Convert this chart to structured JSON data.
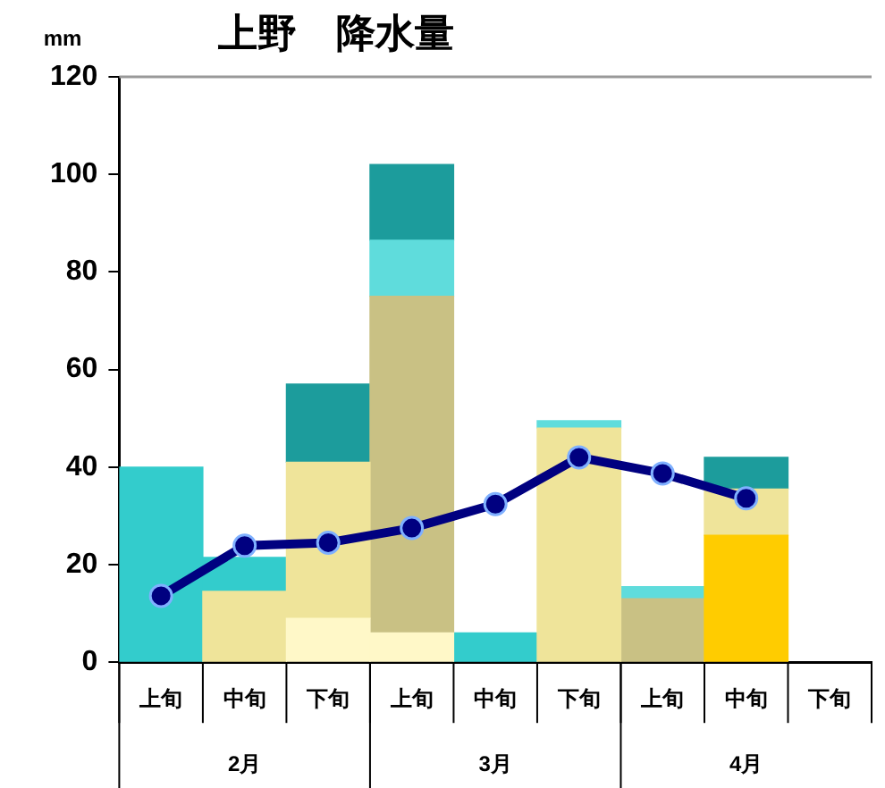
{
  "chart_data": {
    "type": "bar",
    "title": "上野　降水量",
    "ylabel": "mm",
    "stacked": true,
    "categories": [
      "上旬",
      "中旬",
      "下旬",
      "上旬",
      "中旬",
      "下旬",
      "上旬",
      "中旬",
      "下旬"
    ],
    "annotations": [
      "2月",
      "3月",
      "4月"
    ],
    "ylim": [
      0,
      120
    ],
    "yticks": [
      0,
      20,
      40,
      60,
      80,
      100,
      120
    ],
    "series": [
      {
        "color": "#ffcc00",
        "values": [
          null,
          null,
          null,
          null,
          null,
          null,
          null,
          26,
          null
        ]
      },
      {
        "color": "#fff8c8",
        "values": [
          null,
          null,
          9,
          6,
          null,
          null,
          null,
          null,
          null
        ]
      },
      {
        "color": "#efe49a",
        "values": [
          null,
          14.5,
          32,
          null,
          null,
          48,
          null,
          9.5,
          null
        ]
      },
      {
        "color": "#c9c184",
        "values": [
          null,
          null,
          null,
          69,
          null,
          null,
          13,
          null,
          null
        ]
      },
      {
        "color": "#33cccc",
        "values": [
          40,
          7,
          null,
          null,
          6,
          null,
          null,
          null,
          null
        ]
      },
      {
        "color": "#5fdcdc",
        "values": [
          null,
          null,
          null,
          11.5,
          null,
          1.5,
          2.5,
          null,
          null
        ]
      },
      {
        "color": "#1c9c9c",
        "values": [
          null,
          null,
          16,
          15.5,
          null,
          null,
          null,
          6.5,
          null
        ]
      },
      {
        "type": "line",
        "color": "#000080",
        "marker": "circle",
        "values": [
          13.6,
          23.9,
          24.5,
          27.5,
          32.4,
          42,
          38.7,
          33.6,
          null
        ]
      }
    ]
  }
}
